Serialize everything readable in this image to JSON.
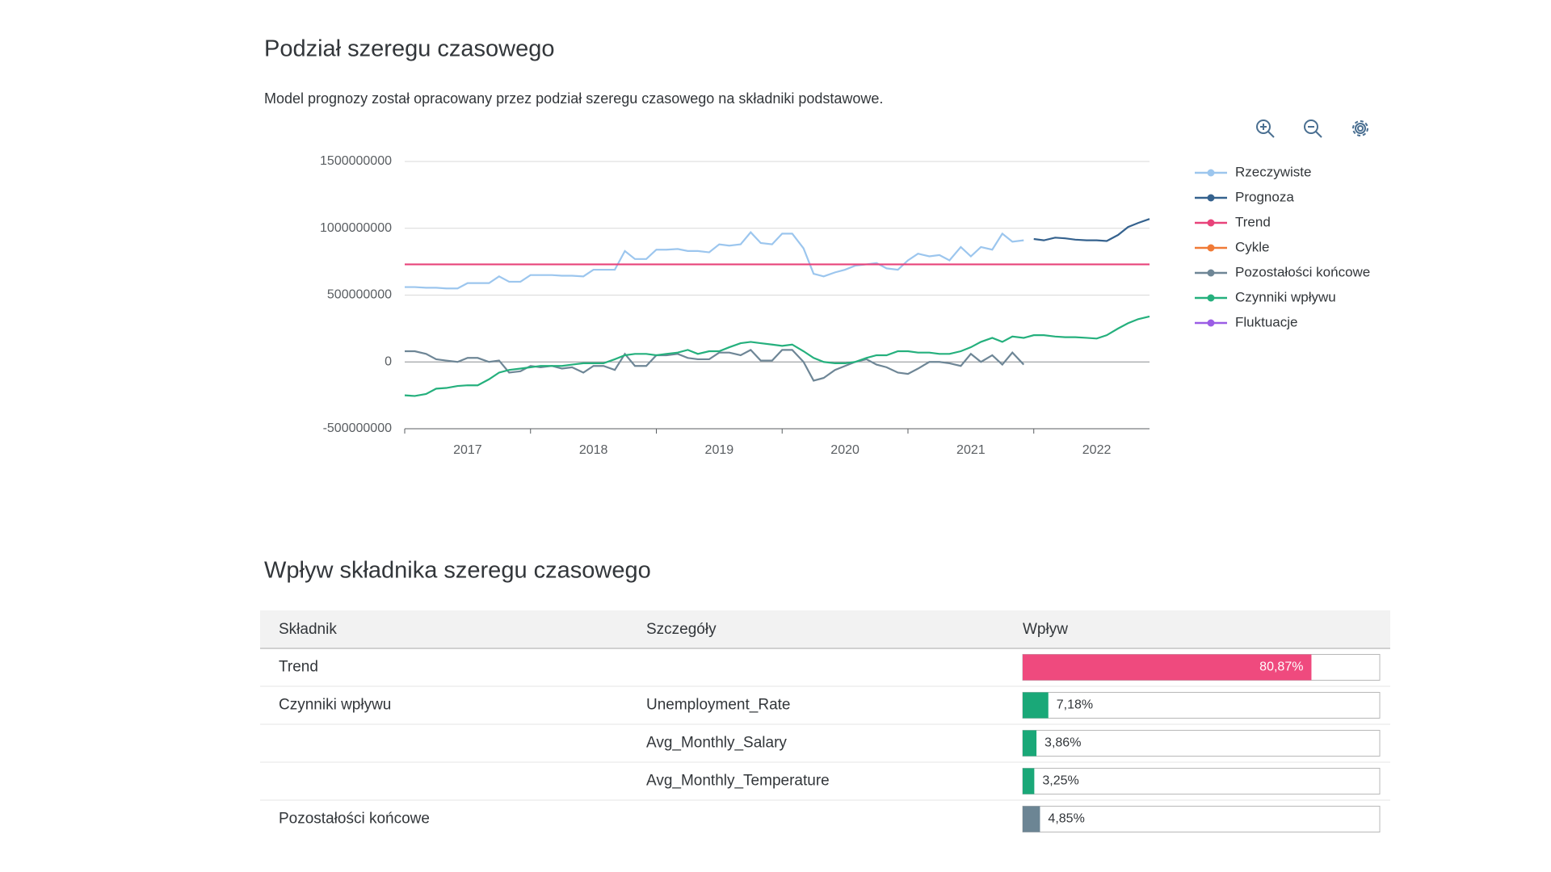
{
  "header": {
    "title": "Podział szeregu czasowego",
    "description": "Model prognozy został opracowany przez podział szeregu czasowego na składniki podstawowe."
  },
  "chart_data": {
    "type": "line",
    "x": [
      2017,
      2017.08,
      2017.17,
      2017.25,
      2017.33,
      2017.42,
      2017.5,
      2017.58,
      2017.67,
      2017.75,
      2017.83,
      2017.92,
      2018,
      2018.08,
      2018.17,
      2018.25,
      2018.33,
      2018.42,
      2018.5,
      2018.58,
      2018.67,
      2018.75,
      2018.83,
      2018.92,
      2019,
      2019.08,
      2019.17,
      2019.25,
      2019.33,
      2019.42,
      2019.5,
      2019.58,
      2019.67,
      2019.75,
      2019.83,
      2019.92,
      2020,
      2020.08,
      2020.17,
      2020.25,
      2020.33,
      2020.42,
      2020.5,
      2020.58,
      2020.67,
      2020.75,
      2020.83,
      2020.92,
      2021,
      2021.08,
      2021.17,
      2021.25,
      2021.33,
      2021.42,
      2021.5,
      2021.58,
      2021.67,
      2021.75,
      2021.83,
      2021.92,
      2022,
      2022.08,
      2022.17,
      2022.25,
      2022.33,
      2022.42,
      2022.5,
      2022.58,
      2022.67,
      2022.75,
      2022.83,
      2022.92
    ],
    "xlim": [
      2017,
      2022.92
    ],
    "xticks": [
      2017,
      2018,
      2019,
      2020,
      2021,
      2022
    ],
    "ylim": [
      -500000000,
      1500000000
    ],
    "yticks": [
      -500000000,
      0,
      500000000,
      1000000000,
      1500000000
    ],
    "grid": true,
    "legend": "right",
    "series": [
      {
        "name": "Rzeczywiste",
        "color": "#9cc6ee",
        "values": [
          560000000.0,
          560000000.0,
          555000000.0,
          555000000.0,
          550000000.0,
          550000000.0,
          590000000.0,
          590000000.0,
          590000000.0,
          640000000.0,
          600000000.0,
          600000000.0,
          650000000.0,
          650000000.0,
          650000000.0,
          645000000.0,
          645000000.0,
          640000000.0,
          690000000.0,
          690000000.0,
          690000000.0,
          830000000.0,
          770000000.0,
          770000000.0,
          840000000.0,
          840000000.0,
          845000000.0,
          830000000.0,
          830000000.0,
          820000000.0,
          880000000.0,
          870000000.0,
          880000000.0,
          970000000.0,
          890000000.0,
          880000000.0,
          960000000.0,
          960000000.0,
          850000000.0,
          660000000.0,
          640000000.0,
          670000000.0,
          690000000.0,
          720000000.0,
          730000000.0,
          740000000.0,
          700000000.0,
          690000000.0,
          760000000.0,
          810000000.0,
          790000000.0,
          800000000.0,
          760000000.0,
          860000000.0,
          790000000.0,
          860000000.0,
          840000000.0,
          960000000.0,
          900000000.0,
          910000000.0,
          null,
          null,
          null,
          null,
          null,
          null,
          null,
          null,
          null,
          null,
          null,
          null
        ]
      },
      {
        "name": "Prognoza",
        "color": "#35628e",
        "values": [
          null,
          null,
          null,
          null,
          null,
          null,
          null,
          null,
          null,
          null,
          null,
          null,
          null,
          null,
          null,
          null,
          null,
          null,
          null,
          null,
          null,
          null,
          null,
          null,
          null,
          null,
          null,
          null,
          null,
          null,
          null,
          null,
          null,
          null,
          null,
          null,
          null,
          null,
          null,
          null,
          null,
          null,
          null,
          null,
          null,
          null,
          null,
          null,
          null,
          null,
          null,
          null,
          null,
          null,
          null,
          null,
          null,
          null,
          null,
          null,
          920000000.0,
          910000000.0,
          930000000.0,
          925000000.0,
          915000000.0,
          910000000.0,
          910000000.0,
          905000000.0,
          950000000.0,
          1010000000.0,
          1040000000.0,
          1070000000.0
        ]
      },
      {
        "name": "Trend",
        "color": "#e8437a",
        "values": [
          730000000.0,
          730000000.0,
          730000000.0,
          730000000.0,
          730000000.0,
          730000000.0,
          730000000.0,
          730000000.0,
          730000000.0,
          730000000.0,
          730000000.0,
          730000000.0,
          730000000.0,
          730000000.0,
          730000000.0,
          730000000.0,
          730000000.0,
          730000000.0,
          730000000.0,
          730000000.0,
          730000000.0,
          730000000.0,
          730000000.0,
          730000000.0,
          730000000.0,
          730000000.0,
          730000000.0,
          730000000.0,
          730000000.0,
          730000000.0,
          730000000.0,
          730000000.0,
          730000000.0,
          730000000.0,
          730000000.0,
          730000000.0,
          730000000.0,
          730000000.0,
          730000000.0,
          730000000.0,
          730000000.0,
          730000000.0,
          730000000.0,
          730000000.0,
          730000000.0,
          730000000.0,
          730000000.0,
          730000000.0,
          730000000.0,
          730000000.0,
          730000000.0,
          730000000.0,
          730000000.0,
          730000000.0,
          730000000.0,
          730000000.0,
          730000000.0,
          730000000.0,
          730000000.0,
          730000000.0,
          730000000.0,
          730000000.0,
          730000000.0,
          730000000.0,
          730000000.0,
          730000000.0,
          730000000.0,
          730000000.0,
          730000000.0,
          730000000.0,
          730000000.0,
          730000000.0
        ]
      },
      {
        "name": "Cykle",
        "color": "#f07a36",
        "values": [
          null,
          null,
          null,
          null,
          null,
          null,
          null,
          null,
          null,
          null,
          null,
          null,
          null,
          null,
          null,
          null,
          null,
          null,
          null,
          null,
          null,
          null,
          null,
          null,
          null,
          null,
          null,
          null,
          null,
          null,
          null,
          null,
          null,
          null,
          null,
          null,
          null,
          null,
          null,
          null,
          null,
          null,
          null,
          null,
          null,
          null,
          null,
          null,
          null,
          null,
          null,
          null,
          null,
          null,
          null,
          null,
          null,
          null,
          null,
          null,
          null,
          null,
          null,
          null,
          null,
          null,
          null,
          null,
          null,
          null,
          null,
          null
        ]
      },
      {
        "name": "Pozostałości końcowe",
        "color": "#6e8696",
        "values": [
          80000000.0,
          80000000.0,
          60000000.0,
          20000000.0,
          10000000.0,
          0,
          30000000.0,
          30000000.0,
          0,
          10000000.0,
          -80000000.0,
          -70000000.0,
          -30000000.0,
          -40000000.0,
          -30000000.0,
          -50000000.0,
          -40000000.0,
          -80000000.0,
          -30000000.0,
          -30000000.0,
          -60000000.0,
          60000000.0,
          -30000000.0,
          -30000000.0,
          50000000.0,
          50000000.0,
          60000000.0,
          30000000.0,
          20000000.0,
          20000000.0,
          70000000.0,
          70000000.0,
          50000000.0,
          90000000.0,
          10000000.0,
          10000000.0,
          90000000.0,
          90000000.0,
          0,
          -140000000.0,
          -120000000.0,
          -60000000.0,
          -30000000.0,
          0,
          20000000.0,
          -20000000.0,
          -40000000.0,
          -80000000.0,
          -90000000.0,
          -50000000.0,
          0,
          0,
          -10000000.0,
          -30000000.0,
          60000000.0,
          0,
          50000000.0,
          -20000000.0,
          70000000.0,
          -20000000.0,
          null,
          null,
          null,
          null,
          null,
          null,
          null,
          null,
          null,
          null,
          null,
          null
        ]
      },
      {
        "name": "Czynniki wpływu",
        "color": "#25b07d",
        "values": [
          -250000000.0,
          -255000000.0,
          -240000000.0,
          -200000000.0,
          -195000000.0,
          -180000000.0,
          -175000000.0,
          -175000000.0,
          -130000000.0,
          -80000000.0,
          -60000000.0,
          -50000000.0,
          -40000000.0,
          -30000000.0,
          -30000000.0,
          -30000000.0,
          -20000000.0,
          -10000000.0,
          -10000000.0,
          -10000000.0,
          20000000.0,
          50000000.0,
          60000000.0,
          60000000.0,
          50000000.0,
          60000000.0,
          70000000.0,
          90000000.0,
          60000000.0,
          80000000.0,
          80000000.0,
          110000000.0,
          140000000.0,
          150000000.0,
          140000000.0,
          130000000.0,
          120000000.0,
          130000000.0,
          80000000.0,
          30000000.0,
          0,
          -10000000.0,
          -10000000.0,
          0,
          30000000.0,
          50000000.0,
          50000000.0,
          80000000.0,
          80000000.0,
          70000000.0,
          70000000.0,
          60000000.0,
          60000000.0,
          80000000.0,
          110000000.0,
          150000000.0,
          180000000.0,
          150000000.0,
          190000000.0,
          180000000.0,
          200000000.0,
          200000000.0,
          190000000.0,
          185000000.0,
          185000000.0,
          180000000.0,
          175000000.0,
          200000000.0,
          250000000.0,
          290000000.0,
          320000000.0,
          340000000.0
        ]
      },
      {
        "name": "Fluktuacje",
        "color": "#9b5de5",
        "values": [
          null,
          null,
          null,
          null,
          null,
          null,
          null,
          null,
          null,
          null,
          null,
          null,
          null,
          null,
          null,
          null,
          null,
          null,
          null,
          null,
          null,
          null,
          null,
          null,
          null,
          null,
          null,
          null,
          null,
          null,
          null,
          null,
          null,
          null,
          null,
          null,
          null,
          null,
          null,
          null,
          null,
          null,
          null,
          null,
          null,
          null,
          null,
          null,
          null,
          null,
          null,
          null,
          null,
          null,
          null,
          null,
          null,
          null,
          null,
          null,
          null,
          null,
          null,
          null,
          null,
          null,
          null,
          null,
          null,
          null,
          null,
          null
        ]
      }
    ]
  },
  "impact": {
    "title": "Wpływ składnika szeregu czasowego",
    "table": {
      "columns": [
        "Składnik",
        "Szczegóły",
        "Wpływ"
      ],
      "rows": [
        {
          "component": "Trend",
          "impact": 80.87,
          "impact_label": "80,87%",
          "color": "#ef4a7e"
        },
        {
          "component": "Czynniki wpływu",
          "detail": "Unemployment_Rate",
          "impact": 7.18,
          "impact_label": "7,18%",
          "color": "#1aa878"
        },
        {
          "detail": "Avg_Monthly_Salary",
          "impact": 3.86,
          "impact_label": "3,86%",
          "color": "#1aa878"
        },
        {
          "detail": "Avg_Monthly_Temperature",
          "impact": 3.25,
          "impact_label": "3,25%",
          "color": "#1aa878"
        },
        {
          "component": "Pozostałości końcowe",
          "impact": 4.85,
          "impact_label": "4,85%",
          "color": "#6c8594"
        }
      ]
    }
  }
}
